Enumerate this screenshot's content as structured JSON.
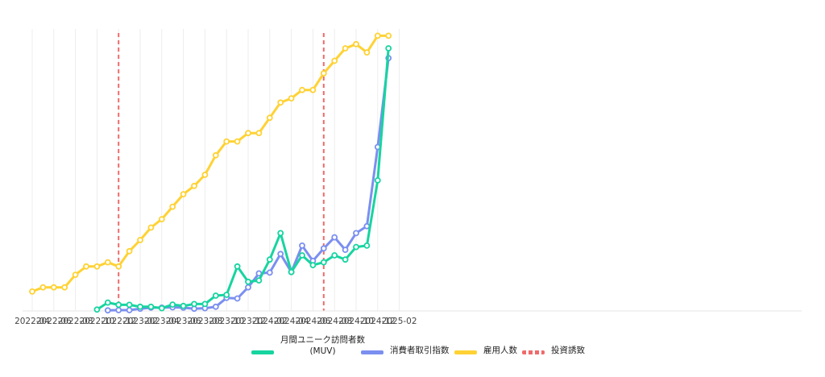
{
  "chart_data": {
    "type": "line",
    "title": "",
    "xlabel": "",
    "ylabel": "",
    "x_tick_labels": [
      "2022-04",
      "2022-06",
      "2022-08",
      "2022-10",
      "2022-12",
      "2023-02",
      "2023-04",
      "2023-06",
      "2023-08",
      "2023-10",
      "2023-12",
      "2024-02",
      "2024-04",
      "2024-06",
      "2024-08",
      "2024-10",
      "2024-12",
      "2025-02"
    ],
    "x_start": "2022-04",
    "ylim": [
      0,
      100
    ],
    "grid": "vertical",
    "legend_position": "bottom",
    "series": [
      {
        "name": "月間ユニーク訪問者数\n(MUV)",
        "color": "#17d4a0",
        "months": [
          "2022-10",
          "2022-11",
          "2022-12",
          "2023-01",
          "2023-02",
          "2023-03",
          "2023-04",
          "2023-05",
          "2023-06",
          "2023-07",
          "2023-08",
          "2023-09",
          "2023-10",
          "2023-11",
          "2023-12",
          "2024-01",
          "2024-02",
          "2024-03",
          "2024-04",
          "2024-05",
          "2024-06",
          "2024-07",
          "2024-08",
          "2024-09",
          "2024-10",
          "2024-11",
          "2024-12",
          "2025-01"
        ],
        "values": [
          0.5,
          3,
          2.2,
          2.2,
          1.5,
          1.5,
          1,
          2.3,
          1.8,
          2.5,
          2.5,
          5.5,
          5.8,
          16,
          10.5,
          11,
          18.5,
          28,
          14,
          20,
          16.5,
          17.5,
          20,
          18.5,
          23,
          23.5,
          47,
          94.5
        ]
      },
      {
        "name": "消費者取引指数",
        "color": "#7b8ff0",
        "months": [
          "2022-11",
          "2022-12",
          "2023-01",
          "2023-02",
          "2023-03",
          "2023-04",
          "2023-05",
          "2023-06",
          "2023-07",
          "2023-08",
          "2023-09",
          "2023-10",
          "2023-11",
          "2023-12",
          "2024-01",
          "2024-02",
          "2024-03",
          "2024-04",
          "2024-05",
          "2024-06",
          "2024-07",
          "2024-08",
          "2024-09",
          "2024-10",
          "2024-11",
          "2024-12",
          "2025-01"
        ],
        "values": [
          0.2,
          0.3,
          0.3,
          0.8,
          1.2,
          1.2,
          1.3,
          1.2,
          0.8,
          1,
          1.5,
          4.7,
          4.5,
          8.5,
          13.5,
          13.8,
          20.5,
          14,
          23.5,
          18,
          22.5,
          26.5,
          22,
          28,
          30.5,
          59,
          91
        ]
      },
      {
        "name": "雇用人数",
        "color": "#ffd234",
        "months": [
          "2022-04",
          "2022-05",
          "2022-06",
          "2022-07",
          "2022-08",
          "2022-09",
          "2022-10",
          "2022-11",
          "2022-12",
          "2023-01",
          "2023-02",
          "2023-03",
          "2023-04",
          "2023-05",
          "2023-06",
          "2023-07",
          "2023-08",
          "2023-09",
          "2023-10",
          "2023-11",
          "2023-12",
          "2024-01",
          "2024-02",
          "2024-03",
          "2024-04",
          "2024-05",
          "2024-06",
          "2024-07",
          "2024-08",
          "2024-09",
          "2024-10",
          "2024-11",
          "2024-12",
          "2025-01"
        ],
        "values": [
          7,
          8.5,
          8.5,
          8.5,
          13,
          16,
          16,
          17.5,
          16,
          21.5,
          25.5,
          30,
          33,
          37.5,
          42,
          45,
          49,
          56,
          61,
          61,
          64,
          64,
          69.5,
          75,
          76.5,
          79.5,
          79.5,
          85.5,
          90,
          94.5,
          96,
          93,
          99,
          99
        ]
      }
    ],
    "investment_events": {
      "name": "投資誘致",
      "color": "#ef6b6b",
      "months": [
        "2022-12",
        "2024-07"
      ]
    }
  }
}
